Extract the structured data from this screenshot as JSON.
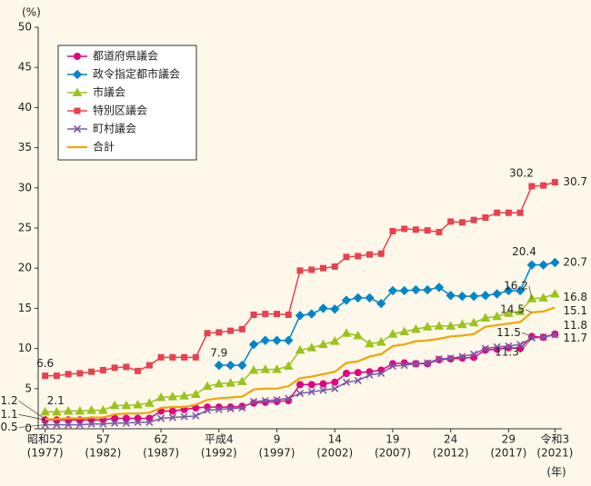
{
  "chart_data": {
    "type": "line",
    "y_label": "(%)",
    "x_unit": "(年)",
    "x": [
      1977,
      1978,
      1979,
      1980,
      1981,
      1982,
      1983,
      1984,
      1985,
      1986,
      1987,
      1988,
      1989,
      1990,
      1991,
      1992,
      1993,
      1994,
      1995,
      1996,
      1997,
      1998,
      1999,
      2000,
      2001,
      2002,
      2003,
      2004,
      2005,
      2006,
      2007,
      2008,
      2009,
      2010,
      2011,
      2012,
      2013,
      2014,
      2015,
      2016,
      2017,
      2018,
      2019,
      2020,
      2021
    ],
    "xlim": [
      1976.4,
      2021.6
    ],
    "xticks": [
      {
        "value": 1977,
        "label": "昭和52",
        "sublabel": "(1977)"
      },
      {
        "value": 1982,
        "label": "57",
        "sublabel": "(1982)"
      },
      {
        "value": 1987,
        "label": "62",
        "sublabel": "(1987)"
      },
      {
        "value": 1992,
        "label": "平成4",
        "sublabel": "(1992)"
      },
      {
        "value": 1997,
        "label": "9",
        "sublabel": "(1997)"
      },
      {
        "value": 2002,
        "label": "14",
        "sublabel": "(2002)"
      },
      {
        "value": 2007,
        "label": "19",
        "sublabel": "(2007)"
      },
      {
        "value": 2012,
        "label": "24",
        "sublabel": "(2012)"
      },
      {
        "value": 2017,
        "label": "29",
        "sublabel": "(2017)"
      },
      {
        "value": 2021,
        "label": "令和3",
        "sublabel": "(2021)"
      }
    ],
    "ylim": [
      0,
      50
    ],
    "yticks": [
      0,
      5,
      10,
      15,
      20,
      25,
      30,
      35,
      40,
      45,
      50
    ],
    "series": [
      {
        "name": "都道府県議会",
        "color": "#e4007f",
        "marker": "circle",
        "label_points": [
          0,
          42,
          44
        ],
        "values": [
          1.1,
          1.1,
          1.1,
          1.1,
          1.1,
          1.1,
          1.3,
          1.3,
          1.3,
          1.3,
          2.2,
          2.2,
          2.4,
          2.6,
          2.7,
          2.7,
          2.7,
          2.8,
          3.2,
          3.3,
          3.4,
          3.5,
          5.5,
          5.5,
          5.6,
          5.8,
          6.9,
          7.0,
          7.1,
          7.3,
          8.1,
          8.2,
          8.1,
          8.1,
          8.6,
          8.7,
          8.8,
          8.9,
          9.8,
          9.9,
          10.1,
          10.0,
          11.5,
          11.4,
          11.8
        ]
      },
      {
        "name": "政令指定都市議会",
        "color": "#0086c8",
        "marker": "diamond",
        "label_points": [
          15,
          42,
          44
        ],
        "values": [
          null,
          null,
          null,
          null,
          null,
          null,
          null,
          null,
          null,
          null,
          null,
          null,
          null,
          null,
          null,
          7.9,
          7.9,
          7.9,
          10.5,
          11.0,
          11.0,
          11.0,
          14.1,
          14.3,
          15.0,
          14.9,
          16.0,
          16.3,
          16.3,
          15.6,
          17.2,
          17.2,
          17.3,
          17.3,
          17.6,
          16.6,
          16.5,
          16.5,
          16.6,
          16.8,
          17.2,
          17.2,
          20.4,
          20.4,
          20.7
        ]
      },
      {
        "name": "市議会",
        "color": "#9ac31c",
        "marker": "triangle",
        "label_points": [
          0,
          42,
          44
        ],
        "values": [
          2.1,
          2.1,
          2.2,
          2.2,
          2.3,
          2.3,
          2.9,
          2.9,
          3.0,
          3.2,
          3.9,
          4.0,
          4.1,
          4.3,
          5.3,
          5.6,
          5.7,
          5.9,
          7.3,
          7.4,
          7.4,
          7.8,
          9.8,
          10.1,
          10.5,
          10.9,
          11.9,
          11.6,
          10.6,
          10.8,
          11.8,
          12.1,
          12.4,
          12.7,
          12.8,
          12.8,
          13.0,
          13.2,
          13.8,
          14.0,
          14.4,
          14.6,
          16.2,
          16.3,
          16.8
        ]
      },
      {
        "name": "特別区議会",
        "color": "#e8414f",
        "marker": "square",
        "label_points": [
          0,
          42,
          44
        ],
        "values": [
          6.6,
          6.6,
          6.8,
          6.9,
          7.1,
          7.3,
          7.6,
          7.7,
          7.2,
          7.9,
          8.9,
          8.9,
          8.9,
          8.9,
          11.9,
          12.0,
          12.2,
          12.4,
          14.2,
          14.3,
          14.3,
          14.2,
          19.7,
          19.8,
          20.0,
          20.2,
          21.4,
          21.5,
          21.7,
          21.8,
          24.6,
          24.9,
          24.8,
          24.7,
          24.5,
          25.8,
          25.7,
          26.0,
          26.3,
          26.9,
          26.9,
          26.9,
          30.2,
          30.3,
          30.7
        ]
      },
      {
        "name": "町村議会",
        "color": "#7a5aa6",
        "marker": "cross",
        "label_points": [
          0,
          42,
          44
        ],
        "values": [
          0.5,
          0.5,
          0.5,
          0.5,
          0.6,
          0.6,
          0.7,
          0.7,
          0.8,
          0.8,
          1.3,
          1.4,
          1.5,
          1.6,
          2.3,
          2.4,
          2.5,
          2.6,
          3.4,
          3.5,
          3.6,
          3.8,
          4.4,
          4.6,
          4.8,
          5.0,
          5.8,
          6.0,
          6.7,
          6.9,
          7.8,
          7.9,
          8.1,
          8.2,
          8.7,
          8.8,
          9.0,
          9.3,
          10.0,
          10.2,
          10.3,
          10.5,
          11.3,
          11.4,
          11.7
        ]
      },
      {
        "name": "合計",
        "color": "#f0a500",
        "marker": "none",
        "label_points": [
          0,
          42,
          44
        ],
        "values": [
          1.2,
          1.2,
          1.3,
          1.3,
          1.4,
          1.4,
          1.8,
          1.9,
          1.9,
          2.0,
          2.6,
          2.7,
          2.7,
          3.0,
          3.6,
          3.8,
          3.9,
          4.0,
          4.9,
          5.0,
          5.0,
          5.3,
          6.3,
          6.5,
          6.8,
          7.1,
          8.2,
          8.4,
          9.0,
          9.3,
          10.3,
          10.5,
          10.9,
          11.0,
          11.2,
          11.5,
          11.6,
          11.8,
          12.7,
          12.9,
          13.1,
          13.3,
          14.5,
          14.6,
          15.1
        ]
      }
    ]
  }
}
